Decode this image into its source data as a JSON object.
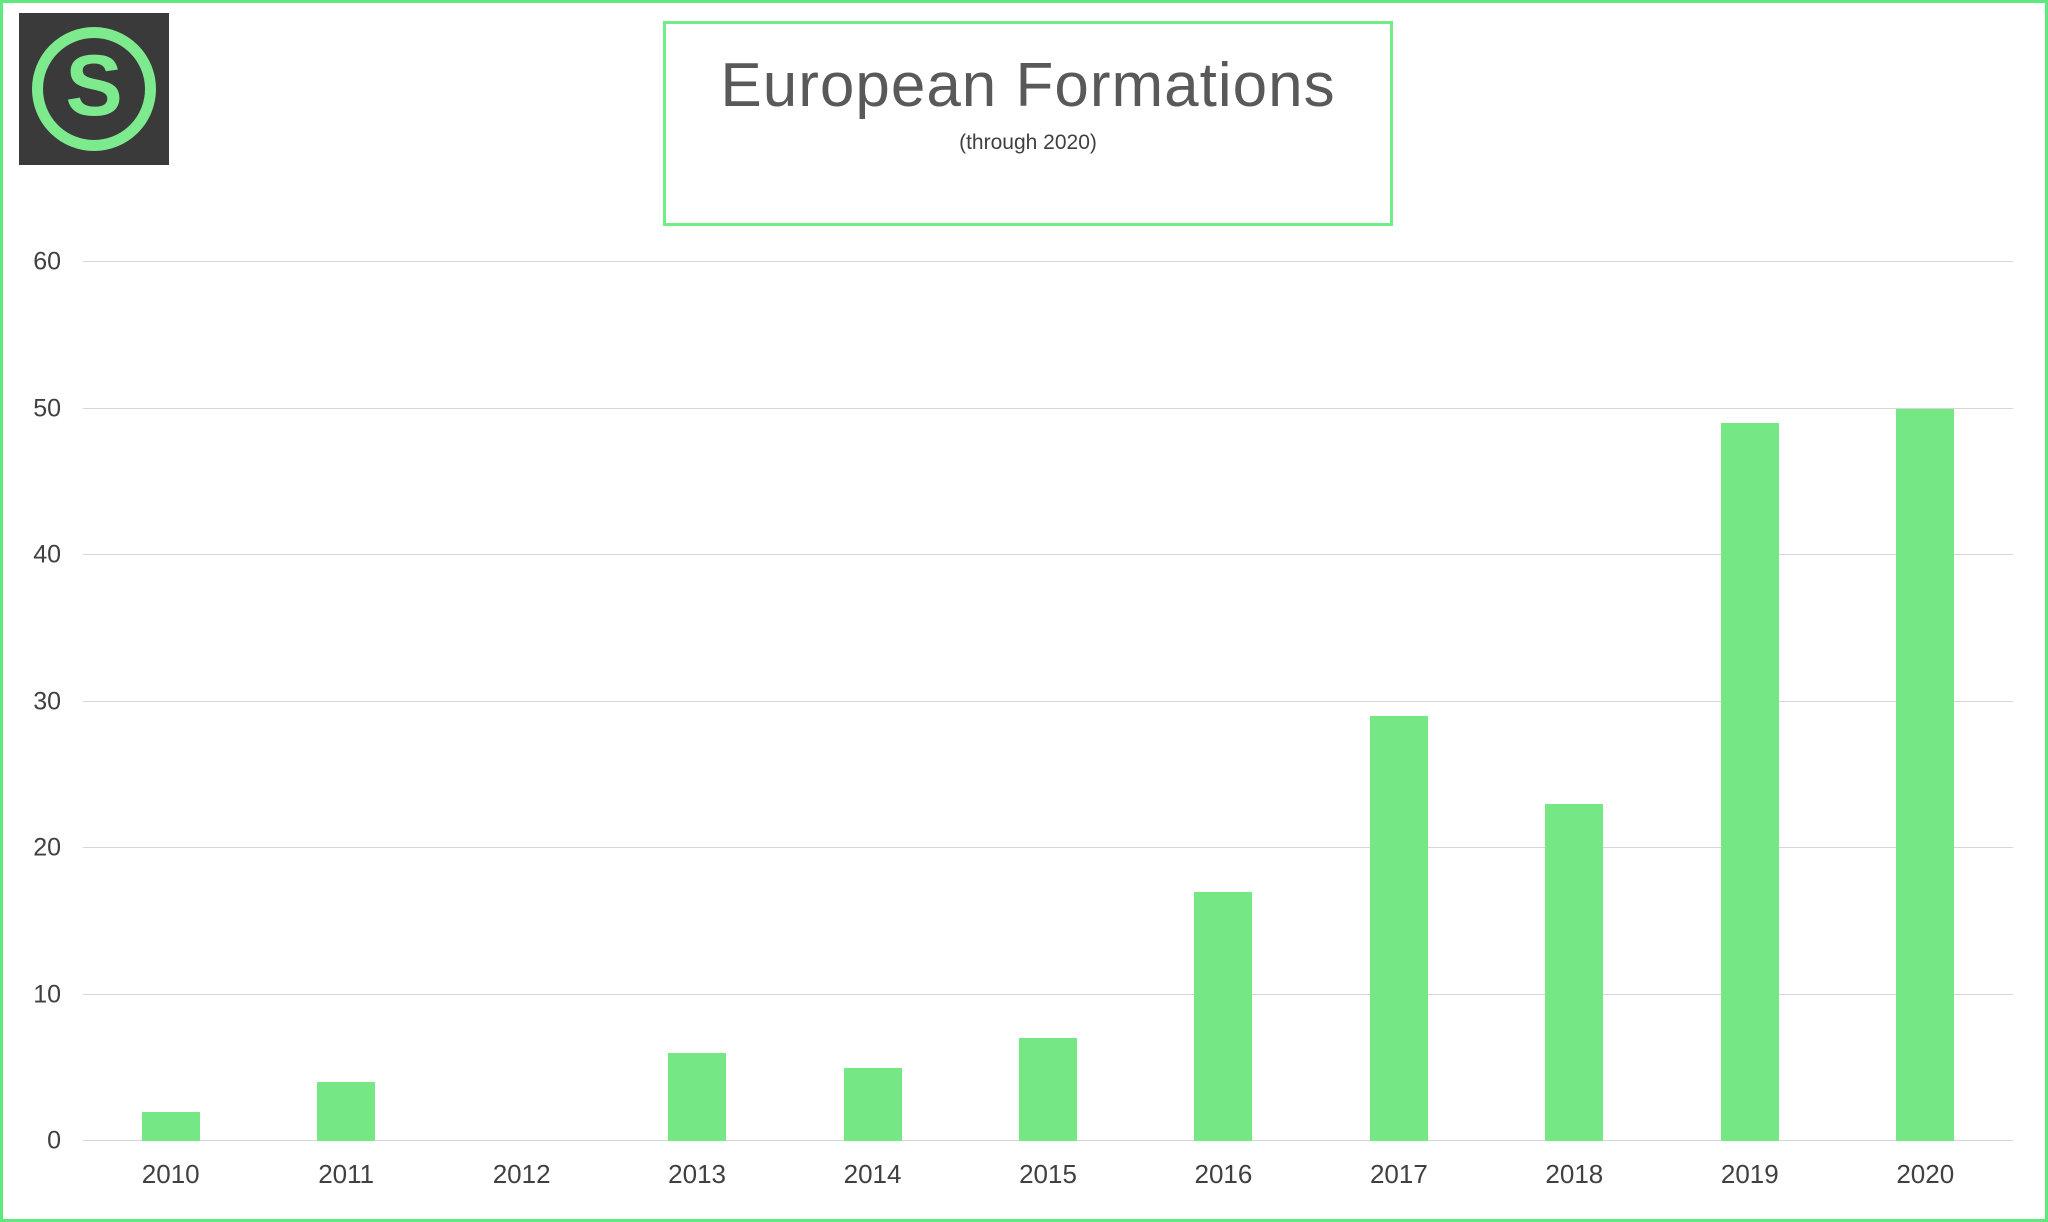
{
  "logo": {
    "letter": "S"
  },
  "title_box": {
    "title": "European Formations",
    "subtitle": "(through 2020)"
  },
  "colors": {
    "page_border": "#5fe87d",
    "title_box_border": "#6fed86",
    "bar": "#76e785",
    "title_text": "#595959",
    "axis_text": "#404040",
    "gridline": "#d6d6d6",
    "logo_background": "#3a3a3a",
    "logo_green": "#7dea8d"
  },
  "chart_data": {
    "type": "bar",
    "title": "European Formations",
    "subtitle": "(through 2020)",
    "categories": [
      "2010",
      "2011",
      "2012",
      "2013",
      "2014",
      "2015",
      "2016",
      "2017",
      "2018",
      "2019",
      "2020"
    ],
    "values": [
      2,
      4,
      0,
      6,
      5,
      7,
      17,
      29,
      23,
      49,
      50
    ],
    "xlabel": "",
    "ylabel": "",
    "ylim": [
      0,
      60
    ],
    "yticks": [
      0,
      10,
      20,
      30,
      40,
      50,
      60
    ],
    "grid": "horizontal",
    "legend": "none",
    "bar_color": "#76e785"
  }
}
